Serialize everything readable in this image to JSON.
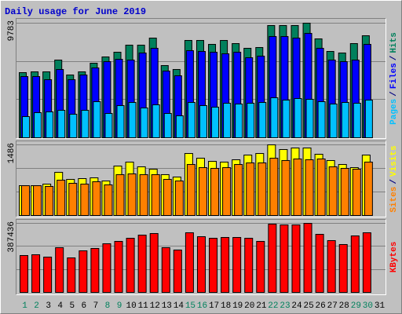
{
  "chart_data": [
    {
      "type": "bar",
      "title": "Daily usage for June 2019",
      "ylim": [
        0,
        9783
      ],
      "yticks": [
        9783
      ],
      "legend_separator": "/",
      "series": [
        {
          "name": "Hits",
          "color": "#00805c",
          "values": [
            5561,
            5628,
            5628,
            6633,
            5360,
            5628,
            6365,
            6901,
            7303,
            7906,
            7906,
            8509,
            6164,
            5829,
            8308,
            8308,
            7973,
            8308,
            8040,
            7638,
            7705,
            9581,
            9581,
            9581,
            9783,
            8442,
            7370,
            7236,
            8040,
            8710,
            null
          ]
        },
        {
          "name": "Files",
          "color": "#0000ff",
          "values": [
            5226,
            5226,
            4958,
            5829,
            4958,
            5360,
            5963,
            6499,
            6700,
            6633,
            7236,
            7638,
            5695,
            5293,
            7437,
            7370,
            7303,
            7169,
            7303,
            6834,
            6968,
            8643,
            8643,
            8509,
            8911,
            7638,
            6633,
            6499,
            6633,
            7973,
            null
          ]
        },
        {
          "name": "Pages",
          "color": "#00c0ff",
          "values": [
            1809,
            2144,
            2211,
            2345,
            2010,
            2345,
            3082,
            2077,
            2747,
            3015,
            2546,
            2814,
            2077,
            1876,
            3015,
            2747,
            2613,
            2948,
            2881,
            2948,
            3015,
            3417,
            3216,
            3350,
            3283,
            3082,
            2881,
            3015,
            2948,
            3216,
            null
          ]
        }
      ]
    },
    {
      "type": "bar",
      "ylim": [
        0,
        1486
      ],
      "yticks": [
        1486
      ],
      "legend_separator": "/",
      "series": [
        {
          "name": "Visits",
          "color": "#ffff00",
          "values": [
            627,
            627,
            660,
            908,
            759,
            776,
            792,
            726,
            1040,
            1123,
            1024,
            974,
            859,
            809,
            1304,
            1205,
            1139,
            1123,
            1172,
            1271,
            1304,
            1486,
            1387,
            1420,
            1420,
            1288,
            1156,
            1073,
            1007,
            1271,
            null
          ]
        },
        {
          "name": "Sites",
          "color": "#ff8000",
          "values": [
            627,
            627,
            611,
            743,
            677,
            660,
            710,
            644,
            859,
            875,
            859,
            859,
            759,
            726,
            1073,
            1007,
            991,
            1007,
            1073,
            1106,
            1106,
            1205,
            1156,
            1189,
            1172,
            1189,
            1024,
            991,
            974,
            1123,
            null
          ]
        }
      ]
    },
    {
      "type": "bar",
      "ylim": [
        0,
        387436
      ],
      "yticks": [
        387436
      ],
      "legend_separator": "/",
      "categories": [
        "1",
        "2",
        "3",
        "4",
        "5",
        "6",
        "7",
        "8",
        "9",
        "10",
        "11",
        "12",
        "13",
        "14",
        "15",
        "16",
        "17",
        "18",
        "19",
        "20",
        "21",
        "22",
        "23",
        "24",
        "25",
        "26",
        "27",
        "28",
        "29",
        "30",
        "31"
      ],
      "category_colors": [
        "#00805c",
        "#00805c",
        "#000000",
        "#000000",
        "#000000",
        "#000000",
        "#000000",
        "#00805c",
        "#00805c",
        "#000000",
        "#000000",
        "#000000",
        "#000000",
        "#000000",
        "#00805c",
        "#00805c",
        "#000000",
        "#000000",
        "#000000",
        "#000000",
        "#000000",
        "#00805c",
        "#00805c",
        "#000000",
        "#000000",
        "#000000",
        "#000000",
        "#000000",
        "#00805c",
        "#00805c",
        "#000000"
      ],
      "series": [
        {
          "name": "KBytes",
          "color": "#ff0000",
          "values": [
            206941,
            211344,
            198135,
            250971,
            193732,
            233359,
            246568,
            272986,
            286195,
            303807,
            321419,
            330225,
            250971,
            237762,
            334628,
            312613,
            303807,
            308210,
            308210,
            303807,
            286195,
            383061,
            378658,
            378658,
            387436,
            325822,
            290598,
            268583,
            317016,
            334628,
            null
          ]
        }
      ]
    }
  ]
}
